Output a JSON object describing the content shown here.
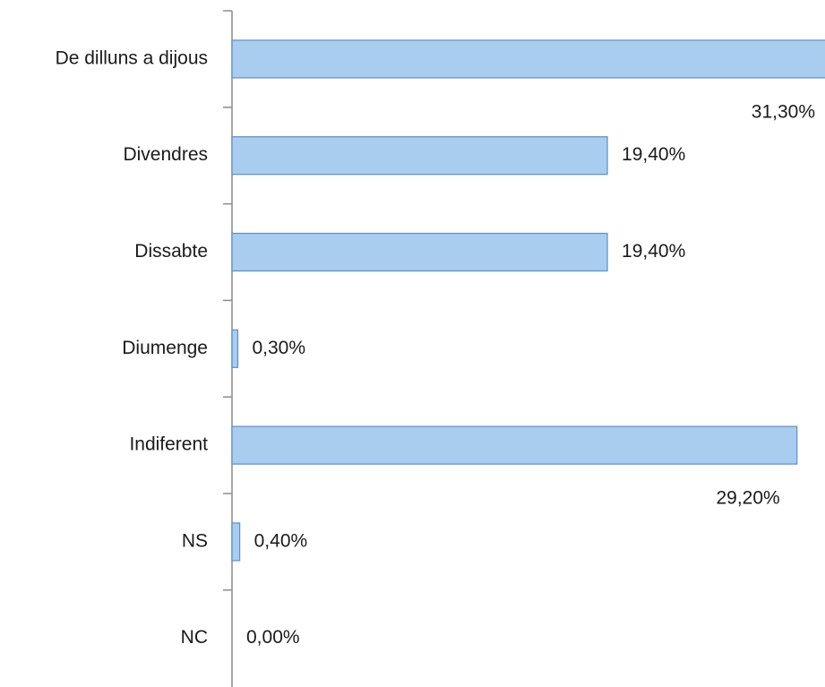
{
  "chart_data": {
    "type": "bar",
    "orientation": "horizontal",
    "categories": [
      "De dilluns a dijous",
      "Divendres",
      "Dissabte",
      "Diumenge",
      "Indiferent",
      "NS",
      "NC"
    ],
    "values": [
      31.3,
      19.4,
      19.4,
      0.3,
      29.2,
      0.4,
      0.0
    ],
    "value_labels": [
      "31,30%",
      "19,40%",
      "19,40%",
      "0,30%",
      "29,20%",
      "0,40%",
      "0,00%"
    ],
    "color": "#a9cdef"
  }
}
